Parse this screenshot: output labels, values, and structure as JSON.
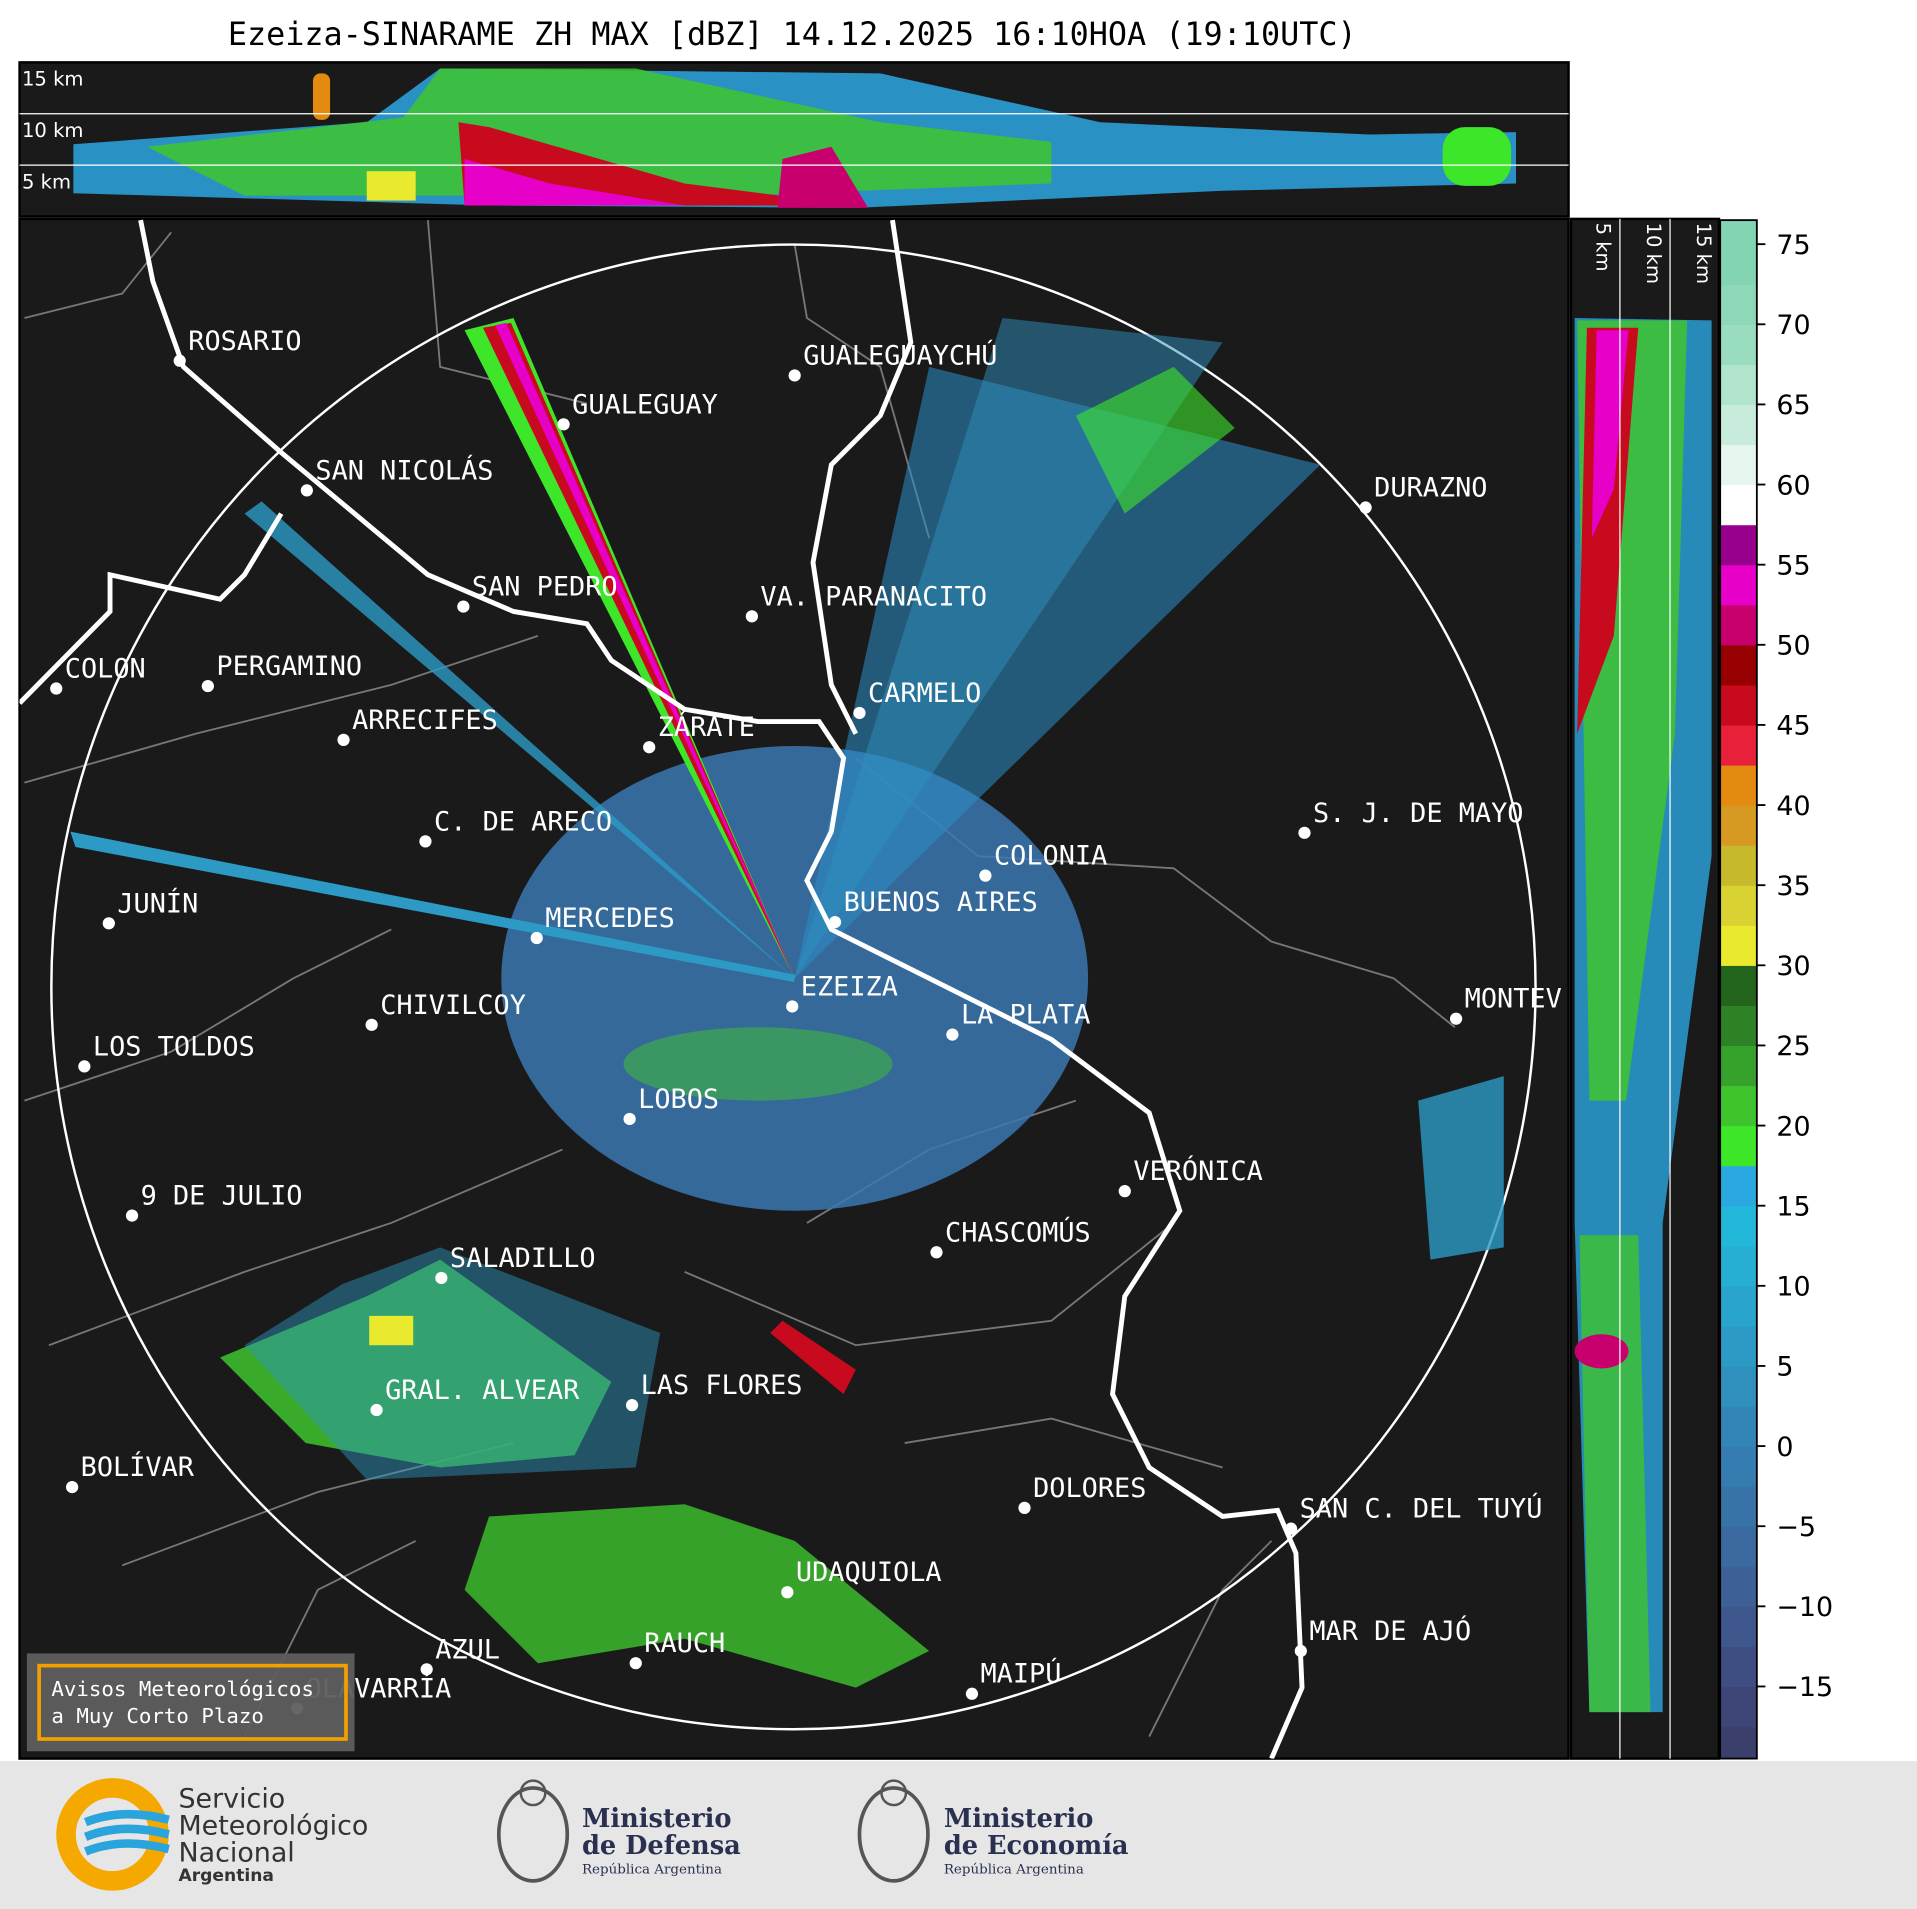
{
  "header": {
    "title": "Ezeiza-SINARAME ZH MAX [dBZ] 14.12.2025 16:10HOA (19:10UTC)"
  },
  "height_labels": [
    "15 km",
    "10 km",
    "5 km"
  ],
  "cities": [
    "ROSARIO",
    "GUALEGUAYCHÚ",
    "GUALEGUAY",
    "SAN NICOLÁS",
    "DURAZNO",
    "SAN PEDRO",
    "VA. PARANACITO",
    "COLON",
    "PERGAMINO",
    "CARMELO",
    "ARRECIFES",
    "ZÁRATE",
    "S. J. DE MAYO",
    "C. DE ARECO",
    "COLONIA",
    "BUENOS AIRES",
    "JUNÍN",
    "MERCEDES",
    "EZEIZA",
    "MONTEV",
    "LA PLATA",
    "CHIVILCOY",
    "LOS TOLDOS",
    "LOBOS",
    "VERÓNICA",
    "9 DE JULIO",
    "CHASCOMÚS",
    "SALADILLO",
    "GRAL. ALVEAR",
    "LAS FLORES",
    "BOLÍVAR",
    "DOLORES",
    "SAN C. DEL TUYÚ",
    "UDAQUIOLA",
    "MAR DE AJÓ",
    "AZUL",
    "RAUCH",
    "MAIPÚ",
    "OLAVARRÍA"
  ],
  "colorbar": {
    "lim": [
      -19.5,
      76.5
    ],
    "ticks": [
      {
        "value": -15,
        "label": "−15"
      },
      {
        "value": -10,
        "label": "−10"
      },
      {
        "value": -5,
        "label": "−5"
      },
      0,
      5,
      10,
      15,
      20,
      25,
      30,
      35,
      40,
      45,
      50,
      55,
      60,
      65,
      70,
      75
    ],
    "bounds": [
      -19.5,
      -17.5,
      -15,
      -12.5,
      -10,
      -7.5,
      -5,
      -2.5,
      0,
      2.5,
      5,
      7.5,
      10,
      12.5,
      15,
      17.5,
      20,
      22.5,
      25,
      27.5,
      30,
      32.5,
      35,
      37.5,
      40,
      42.5,
      45,
      47.5,
      50,
      52.5,
      55,
      57.5,
      60,
      62.5,
      65,
      67.5,
      70,
      72.5,
      76.5
    ],
    "colors": [
      "#3b3f6b",
      "#3d4677",
      "#3e4e82",
      "#3e578d",
      "#3d6097",
      "#3b6aa0",
      "#3873a8",
      "#357db0",
      "#3286b7",
      "#2f90be",
      "#2c9ac5",
      "#29a4cc",
      "#26aed3",
      "#23b8da",
      "#29a9e0",
      "#3ee62a",
      "#3fc42e",
      "#36a22b",
      "#2c8224",
      "#23651c",
      "#e9e92e",
      "#d8d232",
      "#c6ba2c",
      "#d69a22",
      "#e38a10",
      "#e8203a",
      "#c80a1e",
      "#960000",
      "#c8006e",
      "#e600c8",
      "#96008c",
      "#ffffff",
      "#e6f6ee",
      "#c8ecdc",
      "#b0e4cc",
      "#9adcbf",
      "#8cd8b8",
      "#82d4b2"
    ]
  },
  "notice": {
    "lines": [
      "Avisos Meteorológicos",
      "a Muy Corto Plazo"
    ]
  },
  "footer": {
    "smn": {
      "lines": [
        "Servicio",
        "Meteorológico",
        "Nacional"
      ],
      "country": "Argentina"
    },
    "defensa": {
      "lines": [
        "Ministerio",
        "de Defensa"
      ],
      "subtitle": "República Argentina"
    },
    "economia": {
      "lines": [
        "Ministerio",
        "de Economía"
      ],
      "subtitle": "República Argentina"
    }
  }
}
